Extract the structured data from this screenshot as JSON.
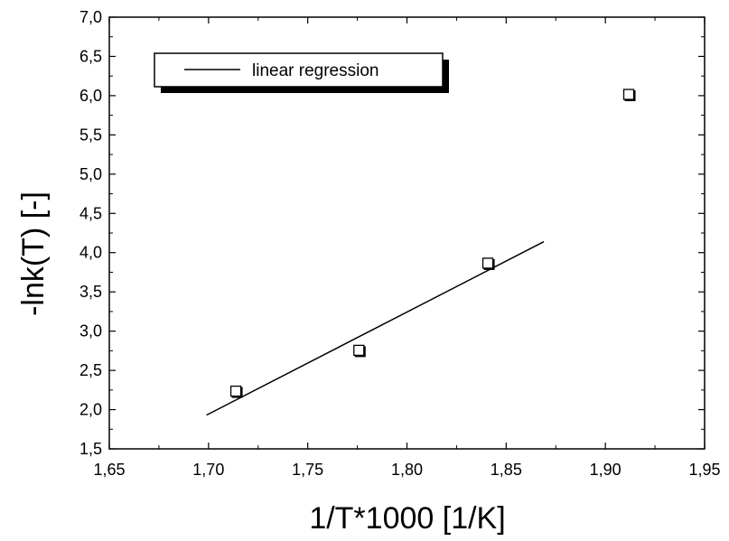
{
  "chart_data": {
    "type": "scatter",
    "xlabel": "1/T*1000 [1/K]",
    "ylabel": "-lnk(T) [-]",
    "xlim": [
      1.65,
      1.95
    ],
    "ylim": [
      1.5,
      7.0
    ],
    "x_major_ticks": [
      1.65,
      1.7,
      1.75,
      1.8,
      1.85,
      1.9,
      1.95
    ],
    "x_tick_labels": [
      "1,65",
      "1,70",
      "1,75",
      "1,80",
      "1,85",
      "1,90",
      "1,95"
    ],
    "y_major_ticks": [
      1.5,
      2.0,
      2.5,
      3.0,
      3.5,
      4.0,
      4.5,
      5.0,
      5.5,
      6.0,
      6.5,
      7.0
    ],
    "y_tick_labels": [
      "1,5",
      "2,0",
      "2,5",
      "3,0",
      "3,5",
      "4,0",
      "4,5",
      "5,0",
      "5,5",
      "6,0",
      "6,5",
      "7,0"
    ],
    "grid": false,
    "legend_placement": "top-left",
    "series": [
      {
        "type": "scatter",
        "marker": "square",
        "x": [
          1.714,
          1.776,
          1.841,
          1.912
        ],
        "y": [
          2.23,
          2.75,
          3.86,
          6.01
        ]
      },
      {
        "type": "line",
        "name": "linear regression",
        "x": [
          1.699,
          1.869
        ],
        "y": [
          1.93,
          4.14
        ]
      }
    ]
  }
}
